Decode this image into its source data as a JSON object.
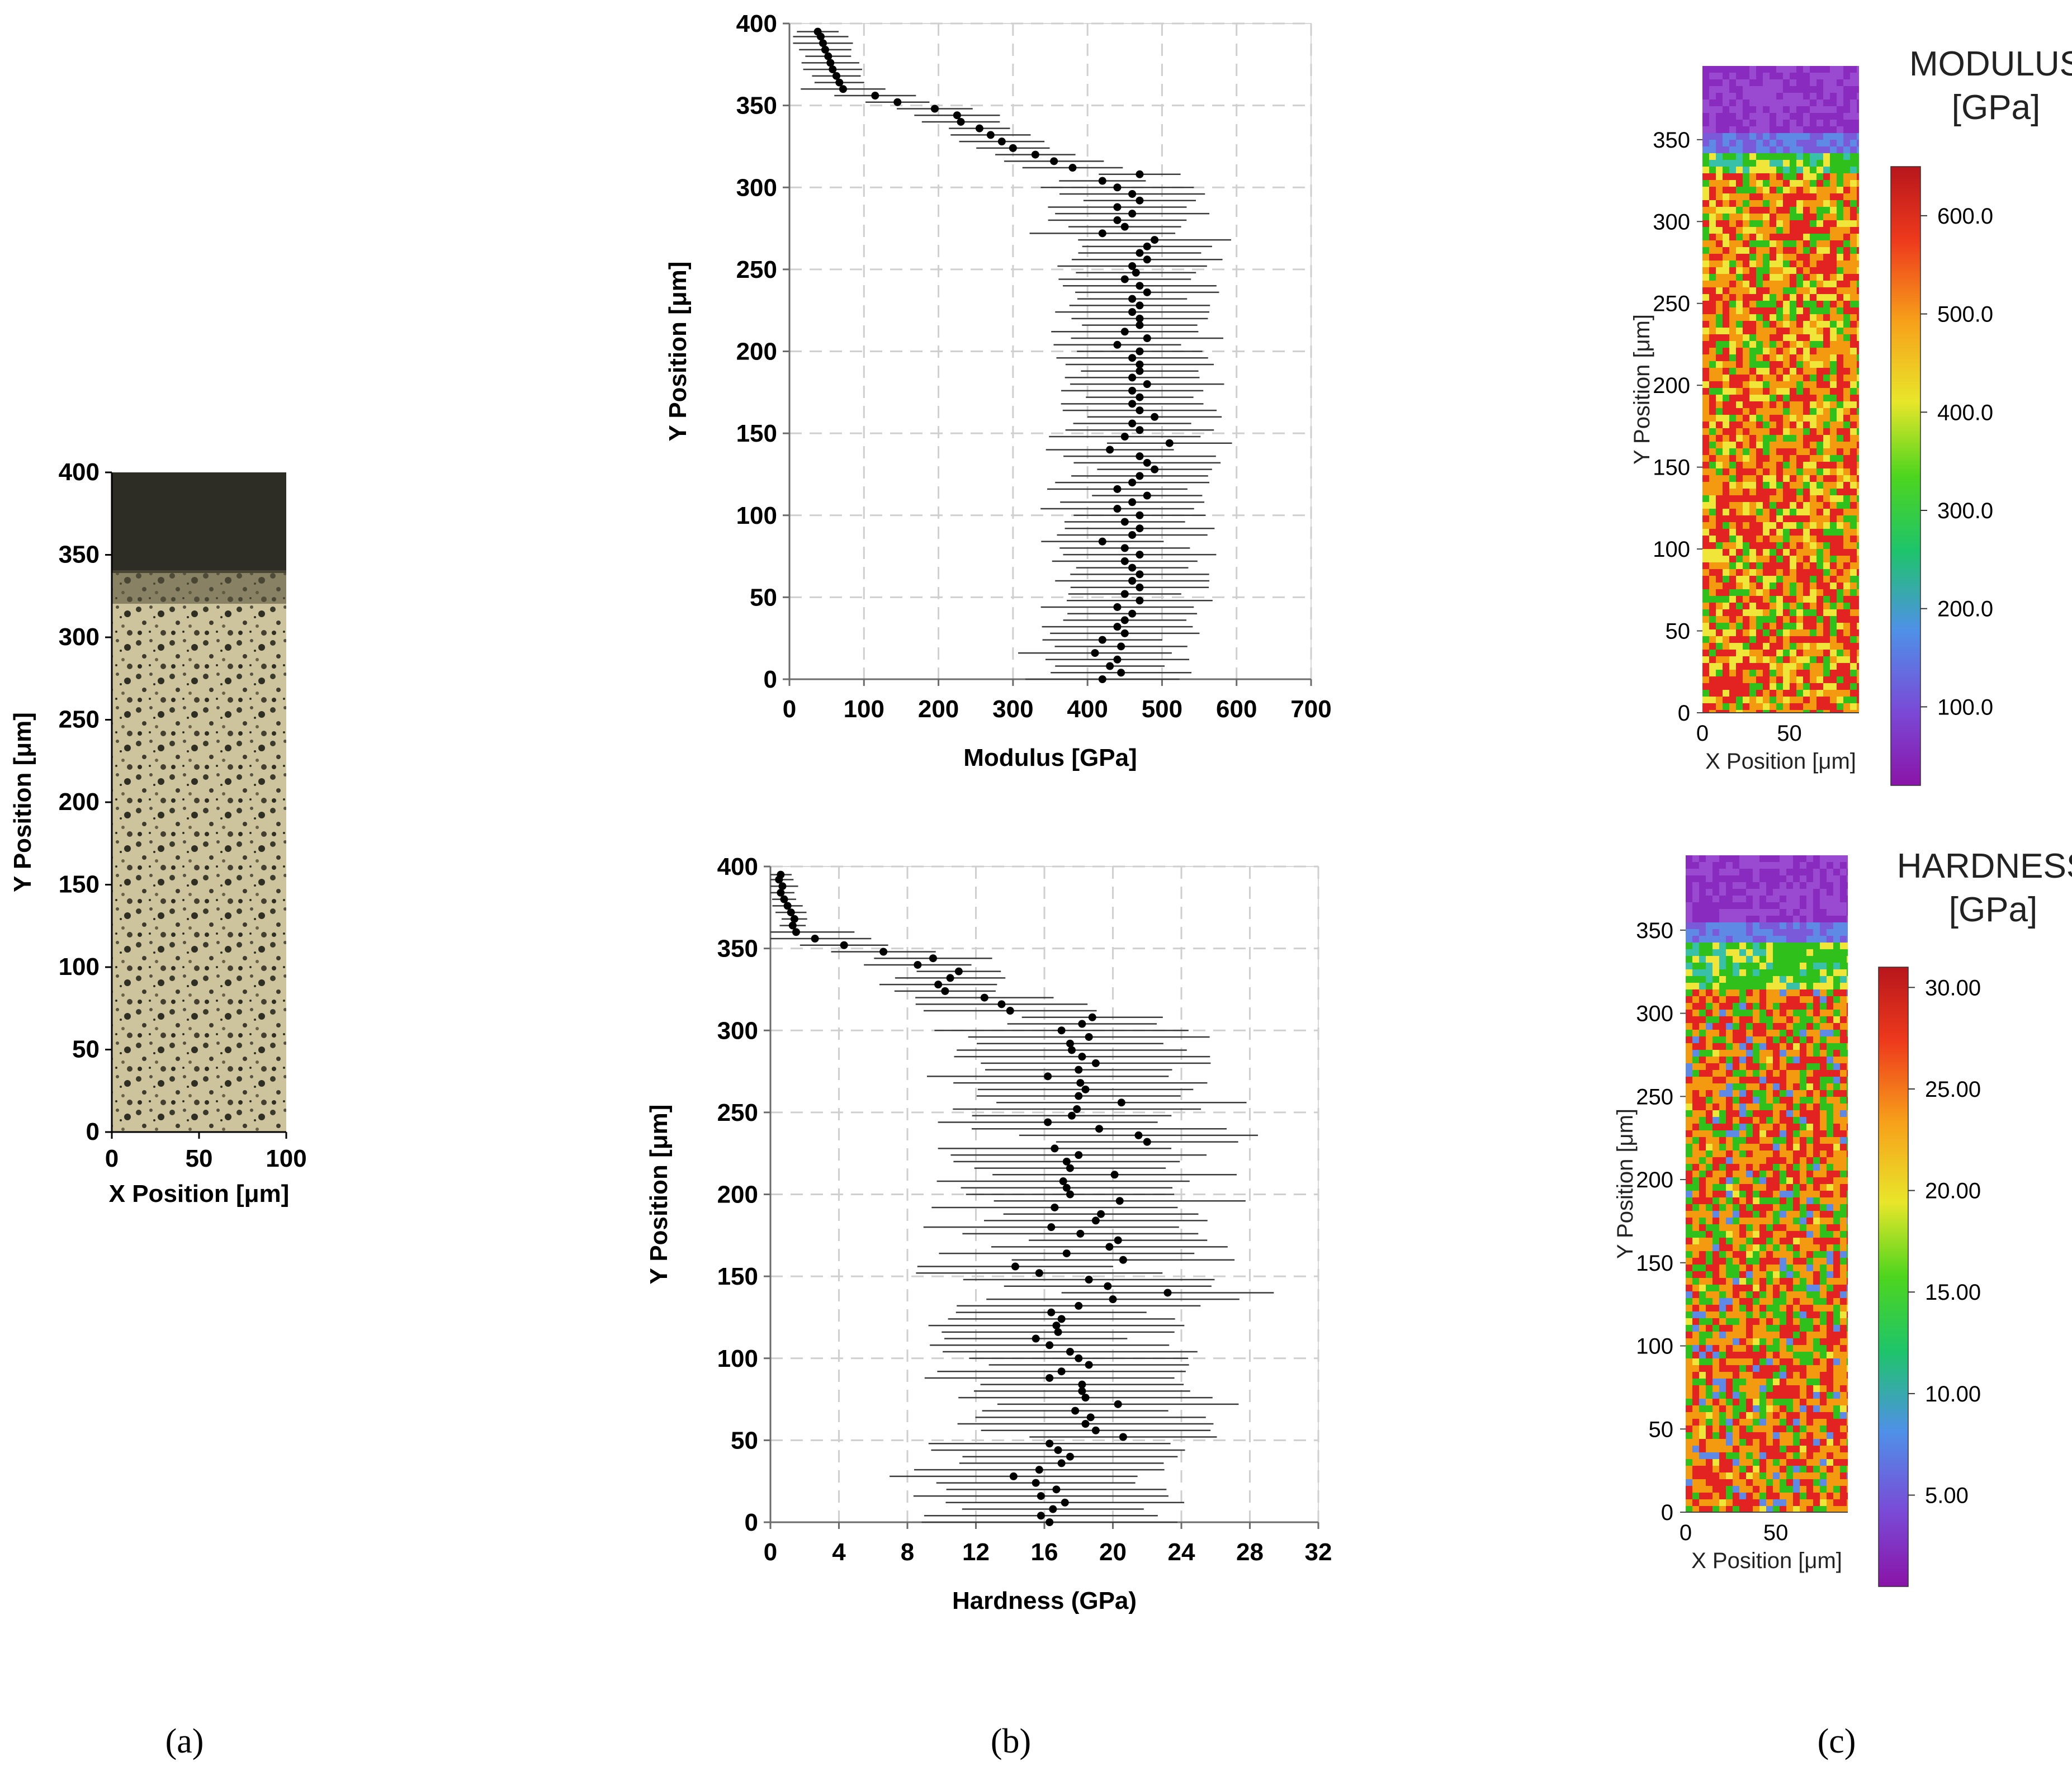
{
  "panel_labels": [
    "(a)",
    "(b)",
    "(c)"
  ],
  "colors": {
    "grid": "#cfcfcf",
    "marker": "#000000",
    "errorbar": "#3a3a3a",
    "map_red": "#e32222",
    "map_orange": "#f39a10",
    "map_yellow": "#f0e63a",
    "map_green": "#2fc01c",
    "map_blue": "#5e8ae6",
    "map_purple": "#8a2bbf",
    "micro_light": "#cdc39c",
    "micro_dark": "#2e2e22"
  },
  "chart_data": [
    {
      "id": "a",
      "type": "image",
      "description_axes": true,
      "xlabel": "X Position [μm]",
      "ylabel": "Y Position [μm]",
      "xlim": [
        0,
        100
      ],
      "ylim": [
        0,
        400
      ],
      "xticks": [
        "0",
        "50",
        "100"
      ],
      "yticks": [
        "0",
        "50",
        "100",
        "150",
        "200",
        "250",
        "300",
        "350",
        "400"
      ]
    },
    {
      "id": "b-modulus",
      "type": "scatter",
      "xlabel": "Modulus [GPa]",
      "ylabel": "Y Position [μm]",
      "xlim": [
        0,
        700
      ],
      "ylim": [
        0,
        400
      ],
      "xticks": [
        "0",
        "100",
        "200",
        "300",
        "400",
        "500",
        "600",
        "700"
      ],
      "yticks": [
        "0",
        "50",
        "100",
        "150",
        "200",
        "250",
        "300",
        "350",
        "400"
      ],
      "points": [
        [
          38,
          395
        ],
        [
          42,
          392
        ],
        [
          45,
          388
        ],
        [
          48,
          384
        ],
        [
          52,
          380
        ],
        [
          55,
          376
        ],
        [
          58,
          372
        ],
        [
          63,
          368
        ],
        [
          67,
          364
        ],
        [
          72,
          360
        ],
        [
          115,
          356
        ],
        [
          145,
          352
        ],
        [
          195,
          348
        ],
        [
          225,
          344
        ],
        [
          230,
          340
        ],
        [
          255,
          336
        ],
        [
          270,
          332
        ],
        [
          285,
          328
        ],
        [
          300,
          324
        ],
        [
          330,
          320
        ],
        [
          355,
          316
        ],
        [
          380,
          312
        ],
        [
          470,
          308
        ],
        [
          420,
          304
        ],
        [
          440,
          300
        ],
        [
          460,
          296
        ],
        [
          470,
          292
        ],
        [
          440,
          288
        ],
        [
          460,
          284
        ],
        [
          440,
          280
        ],
        [
          450,
          276
        ],
        [
          420,
          272
        ],
        [
          490,
          268
        ],
        [
          480,
          264
        ],
        [
          470,
          260
        ],
        [
          480,
          256
        ],
        [
          460,
          252
        ],
        [
          465,
          248
        ],
        [
          450,
          244
        ],
        [
          470,
          240
        ],
        [
          480,
          236
        ],
        [
          460,
          232
        ],
        [
          470,
          228
        ],
        [
          460,
          224
        ],
        [
          470,
          220
        ],
        [
          470,
          216
        ],
        [
          450,
          212
        ],
        [
          480,
          208
        ],
        [
          440,
          204
        ],
        [
          470,
          200
        ],
        [
          460,
          196
        ],
        [
          470,
          192
        ],
        [
          470,
          188
        ],
        [
          460,
          184
        ],
        [
          480,
          180
        ],
        [
          460,
          176
        ],
        [
          470,
          172
        ],
        [
          460,
          168
        ],
        [
          470,
          164
        ],
        [
          490,
          160
        ],
        [
          460,
          156
        ],
        [
          470,
          152
        ],
        [
          450,
          148
        ],
        [
          510,
          144
        ],
        [
          430,
          140
        ],
        [
          470,
          136
        ],
        [
          480,
          132
        ],
        [
          490,
          128
        ],
        [
          470,
          124
        ],
        [
          460,
          120
        ],
        [
          440,
          116
        ],
        [
          480,
          112
        ],
        [
          460,
          108
        ],
        [
          440,
          104
        ],
        [
          470,
          100
        ],
        [
          450,
          96
        ],
        [
          470,
          92
        ],
        [
          460,
          88
        ],
        [
          420,
          84
        ],
        [
          450,
          80
        ],
        [
          470,
          76
        ],
        [
          450,
          72
        ],
        [
          460,
          68
        ],
        [
          470,
          64
        ],
        [
          460,
          60
        ],
        [
          470,
          56
        ],
        [
          450,
          52
        ],
        [
          470,
          48
        ],
        [
          440,
          44
        ],
        [
          460,
          40
        ],
        [
          450,
          36
        ],
        [
          440,
          32
        ],
        [
          450,
          28
        ],
        [
          420,
          24
        ],
        [
          445,
          20
        ],
        [
          410,
          16
        ],
        [
          440,
          12
        ],
        [
          430,
          8
        ],
        [
          445,
          4
        ],
        [
          420,
          0
        ]
      ],
      "error_halfwidth": [
        [
          395,
          360,
          35
        ],
        [
          360,
          320,
          50
        ],
        [
          320,
          300,
          60
        ],
        [
          300,
          0,
          90
        ]
      ]
    },
    {
      "id": "b-hardness",
      "type": "scatter",
      "xlabel": "Hardness (GPa)",
      "ylabel": "Y Position [μm]",
      "xlim": [
        0,
        32
      ],
      "ylim": [
        0,
        400
      ],
      "xticks": [
        "0",
        "4",
        "8",
        "12",
        "16",
        "20",
        "24",
        "28",
        "32"
      ],
      "yticks": [
        "0",
        "50",
        "100",
        "150",
        "200",
        "250",
        "300",
        "350",
        "400"
      ],
      "points": [
        [
          0.6,
          395
        ],
        [
          0.5,
          392
        ],
        [
          0.7,
          388
        ],
        [
          0.6,
          384
        ],
        [
          0.8,
          380
        ],
        [
          1.0,
          376
        ],
        [
          1.2,
          372
        ],
        [
          1.4,
          368
        ],
        [
          1.3,
          364
        ],
        [
          1.5,
          360
        ],
        [
          2.6,
          356
        ],
        [
          4.3,
          352
        ],
        [
          6.6,
          348
        ],
        [
          9.5,
          344
        ],
        [
          8.6,
          340
        ],
        [
          11.0,
          336
        ],
        [
          10.5,
          332
        ],
        [
          9.8,
          328
        ],
        [
          10.2,
          324
        ],
        [
          12.5,
          320
        ],
        [
          13.5,
          316
        ],
        [
          14.0,
          312
        ],
        [
          18.8,
          308
        ],
        [
          18.2,
          304
        ],
        [
          17.0,
          300
        ],
        [
          18.6,
          296
        ],
        [
          17.5,
          292
        ],
        [
          17.6,
          288
        ],
        [
          18.2,
          284
        ],
        [
          19.0,
          280
        ],
        [
          18.0,
          276
        ],
        [
          16.2,
          272
        ],
        [
          18.1,
          268
        ],
        [
          18.4,
          264
        ],
        [
          18.0,
          260
        ],
        [
          20.5,
          256
        ],
        [
          17.9,
          252
        ],
        [
          17.6,
          248
        ],
        [
          16.2,
          244
        ],
        [
          19.2,
          240
        ],
        [
          21.5,
          236
        ],
        [
          22.0,
          232
        ],
        [
          16.6,
          228
        ],
        [
          18.0,
          224
        ],
        [
          17.3,
          220
        ],
        [
          17.5,
          216
        ],
        [
          20.1,
          212
        ],
        [
          17.1,
          208
        ],
        [
          17.3,
          204
        ],
        [
          17.5,
          200
        ],
        [
          20.4,
          196
        ],
        [
          16.6,
          192
        ],
        [
          19.3,
          188
        ],
        [
          19.0,
          184
        ],
        [
          16.4,
          180
        ],
        [
          18.1,
          176
        ],
        [
          20.3,
          172
        ],
        [
          19.8,
          168
        ],
        [
          17.3,
          164
        ],
        [
          20.6,
          160
        ],
        [
          14.3,
          156
        ],
        [
          15.7,
          152
        ],
        [
          18.6,
          148
        ],
        [
          19.7,
          144
        ],
        [
          23.2,
          140
        ],
        [
          20.0,
          136
        ],
        [
          18.0,
          132
        ],
        [
          16.4,
          128
        ],
        [
          17.0,
          124
        ],
        [
          16.7,
          120
        ],
        [
          16.8,
          116
        ],
        [
          15.5,
          112
        ],
        [
          16.3,
          108
        ],
        [
          17.5,
          104
        ],
        [
          18.0,
          100
        ],
        [
          18.6,
          96
        ],
        [
          17.0,
          92
        ],
        [
          16.3,
          88
        ],
        [
          18.2,
          84
        ],
        [
          18.2,
          80
        ],
        [
          18.4,
          76
        ],
        [
          20.3,
          72
        ],
        [
          17.8,
          68
        ],
        [
          18.7,
          64
        ],
        [
          18.4,
          60
        ],
        [
          19.0,
          56
        ],
        [
          20.6,
          52
        ],
        [
          16.3,
          48
        ],
        [
          16.8,
          44
        ],
        [
          17.5,
          40
        ],
        [
          17.0,
          36
        ],
        [
          15.7,
          32
        ],
        [
          14.2,
          28
        ],
        [
          15.5,
          24
        ],
        [
          16.7,
          20
        ],
        [
          15.8,
          16
        ],
        [
          17.2,
          12
        ],
        [
          16.5,
          8
        ],
        [
          15.8,
          4
        ],
        [
          16.3,
          0
        ]
      ],
      "error_halfwidth": [
        [
          395,
          360,
          0.8
        ],
        [
          360,
          320,
          3.0
        ],
        [
          320,
          300,
          4.5
        ],
        [
          300,
          0,
          6.5
        ]
      ]
    },
    {
      "id": "c-modulus",
      "type": "heatmap",
      "title_line1": "MODULUS",
      "title_line2": "[GPa]",
      "xlabel": "X Position [μm]",
      "ylabel": "Y Position [μm]",
      "xlim": [
        0,
        90
      ],
      "ylim": [
        0,
        395
      ],
      "xticks": [
        "0",
        "50"
      ],
      "yticks": [
        "0",
        "50",
        "100",
        "150",
        "200",
        "250",
        "300",
        "350"
      ],
      "colorbar_ticks": [
        "100.0",
        "200.0",
        "300.0",
        "400.0",
        "500.0",
        "600.0"
      ],
      "colorbar_range": [
        20,
        650
      ]
    },
    {
      "id": "c-hardness",
      "type": "heatmap",
      "title_line1": "HARDNESS",
      "title_line2": "[GPa]",
      "xlabel": "X Position [μm]",
      "ylabel": "Y Position [μm]",
      "xlim": [
        0,
        90
      ],
      "ylim": [
        0,
        395
      ],
      "xticks": [
        "0",
        "50"
      ],
      "yticks": [
        "0",
        "50",
        "100",
        "150",
        "200",
        "250",
        "300",
        "350"
      ],
      "colorbar_ticks": [
        "5.00",
        "10.00",
        "15.00",
        "20.00",
        "25.00",
        "30.00"
      ],
      "colorbar_range": [
        0.5,
        31
      ]
    }
  ]
}
